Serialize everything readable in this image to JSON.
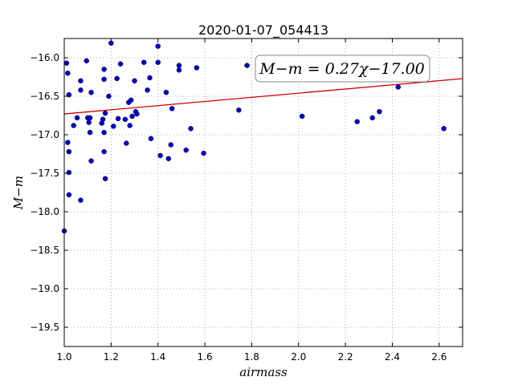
{
  "chart_data": {
    "type": "scatter",
    "title": "2020-01-07_054413",
    "xlabel": "airmass",
    "ylabel": "M−m",
    "xlim": [
      1.0,
      2.7
    ],
    "ylim": [
      -19.75,
      -15.75
    ],
    "y_inverted": true,
    "grid": true,
    "xticks": [
      1.0,
      1.2,
      1.4,
      1.6,
      1.8,
      2.0,
      2.2,
      2.4,
      2.6
    ],
    "xtick_labels": [
      "1.0",
      "1.2",
      "1.4",
      "1.6",
      "1.8",
      "2.0",
      "2.2",
      "2.4",
      "2.6"
    ],
    "yticks": [
      -16.0,
      -16.5,
      -17.0,
      -17.5,
      -18.0,
      -18.5,
      -19.0,
      -19.5
    ],
    "ytick_labels": [
      "−16.0",
      "−16.5",
      "−17.0",
      "−17.5",
      "−18.0",
      "−18.5",
      "−19.0",
      "−19.5"
    ],
    "annotation": "M−m = 0.27χ−17.00",
    "fit": {
      "slope": 0.27,
      "intercept": -17.0,
      "color": "#cc0000"
    },
    "point_color": "#0000cc",
    "points": [
      [
        1.0,
        -18.25
      ],
      [
        1.01,
        -16.07
      ],
      [
        1.015,
        -16.2
      ],
      [
        1.015,
        -17.1
      ],
      [
        1.02,
        -17.22
      ],
      [
        1.02,
        -16.48
      ],
      [
        1.02,
        -17.78
      ],
      [
        1.02,
        -17.49
      ],
      [
        1.04,
        -16.88
      ],
      [
        1.055,
        -16.78
      ],
      [
        1.07,
        -16.3
      ],
      [
        1.07,
        -16.42
      ],
      [
        1.07,
        -17.85
      ],
      [
        1.095,
        -16.04
      ],
      [
        1.1,
        -16.78
      ],
      [
        1.105,
        -16.84
      ],
      [
        1.11,
        -16.78
      ],
      [
        1.11,
        -16.97
      ],
      [
        1.115,
        -17.34
      ],
      [
        1.115,
        -16.45
      ],
      [
        1.16,
        -16.85
      ],
      [
        1.165,
        -16.8
      ],
      [
        1.17,
        -16.97
      ],
      [
        1.17,
        -16.15
      ],
      [
        1.17,
        -16.28
      ],
      [
        1.17,
        -17.22
      ],
      [
        1.175,
        -16.72
      ],
      [
        1.175,
        -17.57
      ],
      [
        1.19,
        -16.5
      ],
      [
        1.2,
        -15.81
      ],
      [
        1.21,
        -16.89
      ],
      [
        1.225,
        -16.27
      ],
      [
        1.23,
        -16.79
      ],
      [
        1.24,
        -16.08
      ],
      [
        1.26,
        -16.8
      ],
      [
        1.265,
        -17.11
      ],
      [
        1.275,
        -16.58
      ],
      [
        1.28,
        -16.88
      ],
      [
        1.285,
        -16.55
      ],
      [
        1.29,
        -16.76
      ],
      [
        1.3,
        -16.3
      ],
      [
        1.305,
        -16.7
      ],
      [
        1.31,
        -16.73
      ],
      [
        1.34,
        -16.06
      ],
      [
        1.355,
        -16.42
      ],
      [
        1.365,
        -16.26
      ],
      [
        1.37,
        -17.05
      ],
      [
        1.4,
        -15.85
      ],
      [
        1.4,
        -16.06
      ],
      [
        1.41,
        -17.27
      ],
      [
        1.435,
        -16.45
      ],
      [
        1.445,
        -17.31
      ],
      [
        1.455,
        -17.13
      ],
      [
        1.46,
        -16.66
      ],
      [
        1.49,
        -16.1
      ],
      [
        1.49,
        -16.16
      ],
      [
        1.52,
        -17.2
      ],
      [
        1.54,
        -16.92
      ],
      [
        1.565,
        -16.13
      ],
      [
        1.595,
        -17.24
      ],
      [
        1.745,
        -16.68
      ],
      [
        1.78,
        -16.1
      ],
      [
        2.015,
        -16.76
      ],
      [
        2.25,
        -16.83
      ],
      [
        2.315,
        -16.78
      ],
      [
        2.345,
        -16.7
      ],
      [
        2.425,
        -16.38
      ],
      [
        2.62,
        -16.92
      ]
    ]
  }
}
